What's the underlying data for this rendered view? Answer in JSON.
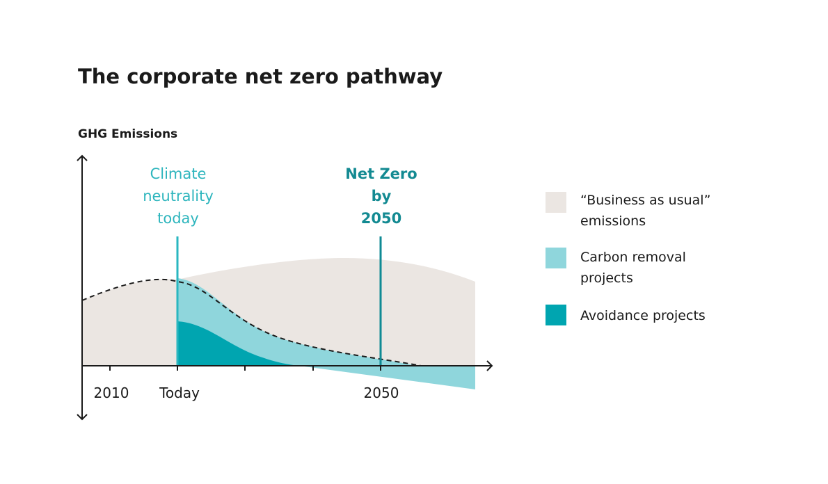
{
  "title": "The corporate net zero pathway",
  "y_axis_label": "GHG Emissions",
  "x_labels": [
    "2010",
    "Today",
    "2050"
  ],
  "annotations": [
    {
      "lines": [
        "Climate",
        "neutrality",
        "today"
      ]
    },
    {
      "lines": [
        "Net Zero",
        "by",
        "2050"
      ]
    }
  ],
  "legend": [
    {
      "lines": [
        "“Business as usual”",
        "emissions"
      ]
    },
    {
      "lines": [
        "Carbon removal",
        "projects"
      ]
    },
    {
      "lines": [
        "Avoidance projects"
      ]
    }
  ]
}
